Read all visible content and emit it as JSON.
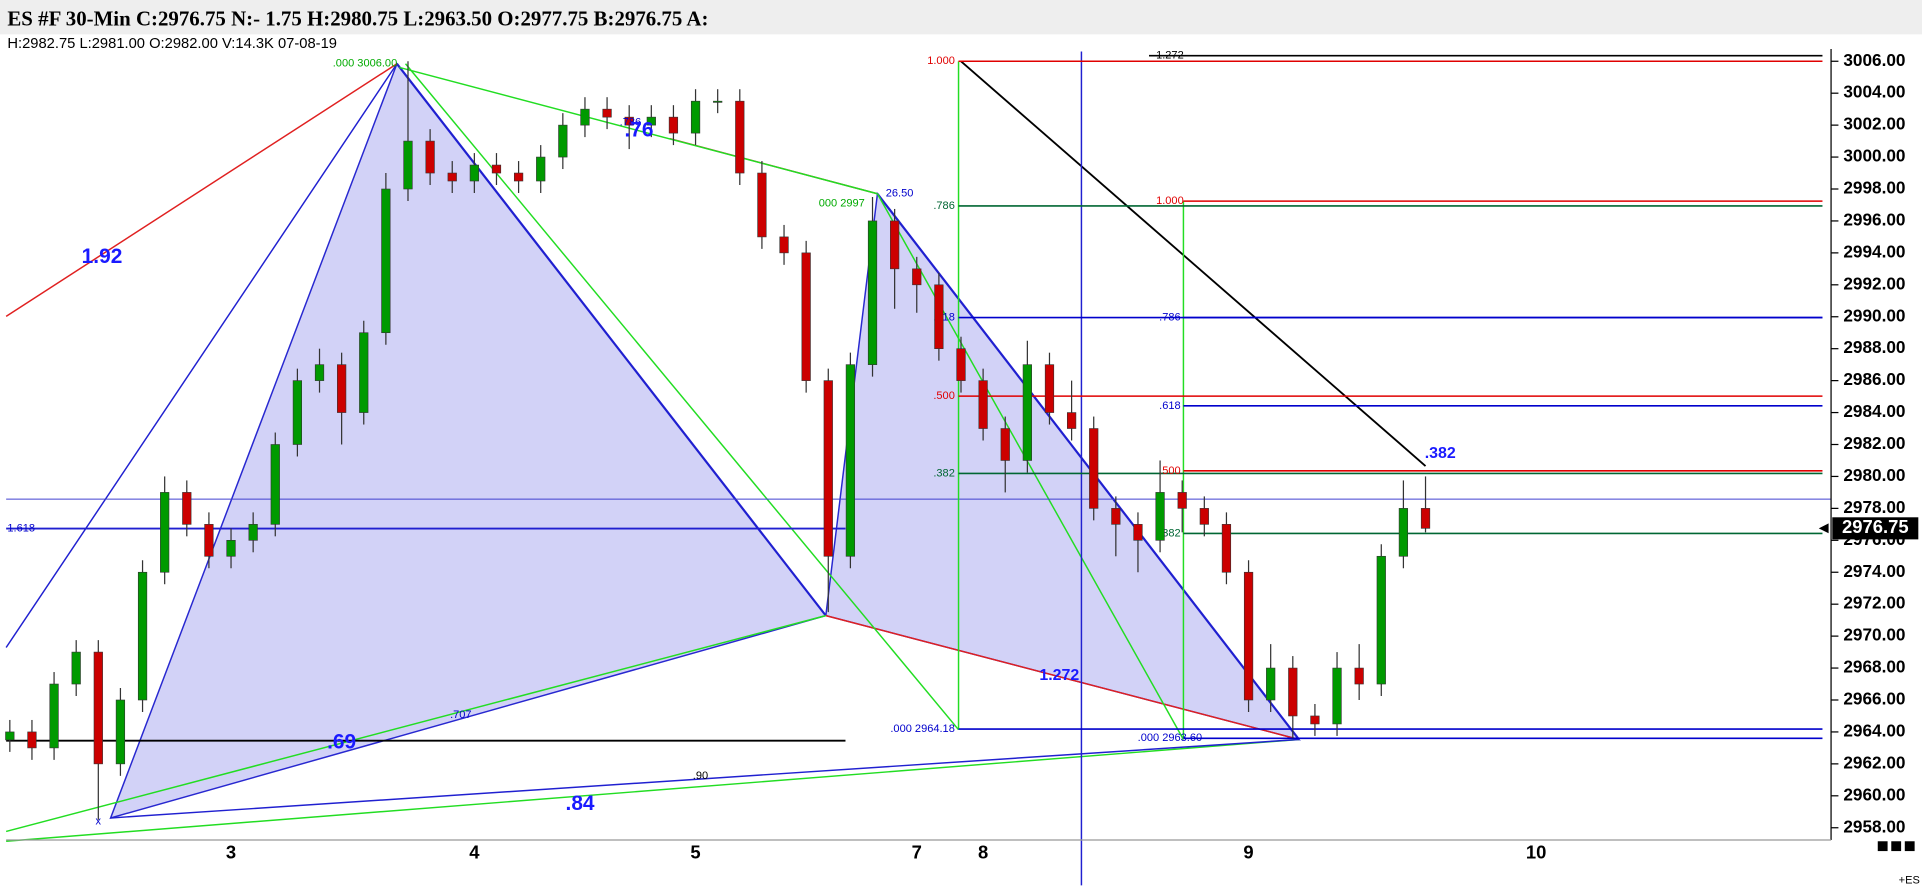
{
  "chart_data": {
    "type": "candlestick",
    "title": "ES #F 30-Min C:2976.75 N:- 1.75 H:2980.75 L:2963.50 O:2977.75 B:2976.75 A:",
    "subtitle": "H:2982.75  L:2981.00  O:2982.00  V:14.3K  07-08-19",
    "categories": [
      null,
      null,
      null,
      null,
      null,
      null,
      null,
      null,
      null,
      null,
      "3",
      null,
      null,
      null,
      null,
      null,
      null,
      null,
      null,
      null,
      null,
      "4",
      null,
      null,
      null,
      null,
      null,
      null,
      null,
      null,
      null,
      "5",
      null,
      null,
      null,
      null,
      null,
      null,
      null,
      null,
      null,
      "7",
      null,
      null,
      "8",
      null,
      null,
      null,
      null,
      null,
      null,
      null,
      null,
      null,
      null,
      null,
      "9",
      null,
      null,
      null,
      null,
      null,
      null,
      null,
      null,
      null,
      null,
      null,
      null,
      "10",
      null,
      null,
      null,
      null,
      null,
      null,
      null,
      null,
      null,
      null,
      null,
      null,
      null
    ],
    "open": [
      2963.5,
      2964,
      2963,
      2967,
      2969,
      2962,
      2966,
      2974,
      2979,
      2977,
      2975,
      2976,
      2977,
      2982,
      2986,
      2987,
      2984,
      2989,
      2998,
      3001,
      2999,
      2998.5,
      2999.5,
      2999,
      2998.5,
      3000,
      3002,
      3003,
      3002.5,
      3002,
      3002.5,
      3001.5,
      3003.5,
      3003.5,
      2999,
      2995,
      2994,
      2986,
      2975,
      2987,
      2996,
      2993,
      2992,
      2988,
      2986,
      2983,
      2981,
      2987,
      2984,
      2983,
      2978,
      2977,
      2976,
      2979,
      2978,
      2977,
      2974,
      2966,
      2968,
      2965,
      2964.5,
      2968,
      2967,
      2975,
      2978,
      null,
      null,
      null,
      null,
      null,
      null,
      null,
      null,
      null,
      null,
      null,
      null,
      null,
      null,
      null,
      null,
      null,
      null
    ],
    "high": [
      2964.75,
      2964.75,
      2967.75,
      2969.75,
      2969.75,
      2966.75,
      2974.75,
      2980,
      2979.75,
      2977.75,
      2976.75,
      2977.75,
      2982.75,
      2986.75,
      2988,
      2987.75,
      2989.75,
      2999,
      3006,
      3001.75,
      2999.75,
      3000.25,
      3000.25,
      2999.75,
      3000.75,
      3002.75,
      3003.75,
      3003.75,
      3003.25,
      3003.25,
      3003.25,
      3004.25,
      3004.25,
      3004.25,
      2999.75,
      2995.75,
      2994.75,
      2986.75,
      2987.75,
      2997.5,
      2996.75,
      2993.75,
      2992.75,
      2988.75,
      2986.75,
      2983.75,
      2988.5,
      2987.75,
      2986,
      2983.75,
      2978.75,
      2977.75,
      2981,
      2979.75,
      2978.75,
      2977.75,
      2974.75,
      2969.5,
      2968.75,
      2965.75,
      2969,
      2969.5,
      2975.75,
      2979.75,
      2980,
      null,
      null,
      null,
      null,
      null,
      null,
      null,
      null,
      null,
      null,
      null,
      null,
      null,
      null,
      null,
      null,
      null,
      null
    ],
    "low": [
      2962.75,
      2962.25,
      2962.25,
      2966.25,
      2958.5,
      2961.25,
      2965.25,
      2973.25,
      2976.25,
      2974.25,
      2974.25,
      2975.25,
      2976.25,
      2981.25,
      2985.25,
      2982,
      2983.25,
      2988.25,
      2997.25,
      2998.25,
      2997.75,
      2997.75,
      2998.25,
      2997.75,
      2997.75,
      2999.25,
      3001.25,
      3001.75,
      3000.5,
      3001.25,
      3000.75,
      3000.75,
      3002.75,
      2998.25,
      2994.25,
      2993.25,
      2985.25,
      2971.5,
      2974.25,
      2986.25,
      2990.5,
      2990.25,
      2987.25,
      2985.25,
      2982.25,
      2979,
      2980.25,
      2983.25,
      2982.25,
      2977.25,
      2975,
      2974,
      2975.25,
      2976.5,
      2976.25,
      2973.25,
      2965.25,
      2965.25,
      2963.6,
      2963.75,
      2963.75,
      2966,
      2966.25,
      2974.25,
      2976.5,
      null,
      null,
      null,
      null,
      null,
      null,
      null,
      null,
      null,
      null,
      null,
      null,
      null,
      null,
      null,
      null,
      null,
      null
    ],
    "close": [
      2964,
      2963,
      2967,
      2969,
      2962,
      2966,
      2974,
      2979,
      2977,
      2975,
      2976,
      2977,
      2982,
      2986,
      2987,
      2984,
      2989,
      2998,
      3001,
      2999,
      2998.5,
      2999.5,
      2999,
      2998.5,
      3000,
      3002,
      3003,
      3002.5,
      3002,
      3002.5,
      3001.5,
      3003.5,
      3003.5,
      2999,
      2995,
      2994,
      2986,
      2975,
      2987,
      2996,
      2993,
      2992,
      2988,
      2986,
      2983,
      2981,
      2987,
      2984,
      2983,
      2978,
      2977,
      2976,
      2979,
      2978,
      2977,
      2974,
      2966,
      2968,
      2965,
      2964.5,
      2968,
      2967,
      2975,
      2978,
      2976.75,
      null,
      null,
      null,
      null,
      null,
      null,
      null,
      null,
      null,
      null,
      null,
      null,
      null,
      null,
      null,
      null,
      null,
      null
    ],
    "up_color": "#009a00",
    "down_color": "#cc0000",
    "ylim": [
      2957.23,
      3006.38
    ],
    "yticks": [
      {
        "value": 2958,
        "label": "2958.00"
      },
      {
        "value": 2960,
        "label": "2960.00"
      },
      {
        "value": 2962,
        "label": "2962.00"
      },
      {
        "value": 2964,
        "label": "2964.00"
      },
      {
        "value": 2966,
        "label": "2966.00"
      },
      {
        "value": 2968,
        "label": "2968.00"
      },
      {
        "value": 2970,
        "label": "2970.00"
      },
      {
        "value": 2972,
        "label": "2972.00"
      },
      {
        "value": 2974,
        "label": "2974.00"
      },
      {
        "value": 2976,
        "label": "2976.00"
      },
      {
        "value": 2978,
        "label": "2978.00"
      },
      {
        "value": 2980,
        "label": "2980.00"
      },
      {
        "value": 2982,
        "label": "2982.00"
      },
      {
        "value": 2984,
        "label": "2984.00"
      },
      {
        "value": 2986,
        "label": "2986.00"
      },
      {
        "value": 2988,
        "label": "2988.00"
      },
      {
        "value": 2990,
        "label": "2990.00"
      },
      {
        "value": 2992,
        "label": "2992.00"
      },
      {
        "value": 2994,
        "label": "2994.00"
      },
      {
        "value": 2996,
        "label": "2996.00"
      },
      {
        "value": 2998,
        "label": "2998.00"
      },
      {
        "value": 3000,
        "label": "3000.00"
      },
      {
        "value": 3002,
        "label": "3002.00"
      },
      {
        "value": 3004,
        "label": "3004.00"
      },
      {
        "value": 3006,
        "label": "3006.00"
      }
    ],
    "last_price": {
      "value": 2976.75,
      "label": "2976.75"
    },
    "fib_sets": [
      [
        {
          "label": "1.000",
          "value": 3006,
          "color": "#e00000"
        },
        {
          "label": ".786",
          "value": 2996.94,
          "color": "#006633"
        },
        {
          "label": ".618",
          "value": 2989.95,
          "color": "#0000cc"
        },
        {
          "label": ".500",
          "value": 2985.03,
          "color": "#e00000"
        },
        {
          "label": ".382",
          "value": 2980.19,
          "color": "#006633"
        },
        {
          "label": ".000 2964.18",
          "value": 2964.18,
          "color": "#0000cc"
        }
      ],
      [
        {
          "label": "1.272",
          "value": 3006.35,
          "color": "#000000"
        },
        {
          "label": "1.000",
          "value": 2997.24,
          "color": "#e00000"
        },
        {
          "label": ".786",
          "value": 2989.95,
          "color": "#0000cc"
        },
        {
          "label": ".618",
          "value": 2984.42,
          "color": "#0000cc"
        },
        {
          "label": ".500",
          "value": 2980.35,
          "color": "#e00000"
        },
        {
          "label": ".382",
          "value": 2976.43,
          "color": "#006633"
        },
        {
          "label": ".000 2963.60",
          "value": 2963.6,
          "color": "#0000cc"
        }
      ]
    ],
    "annotations": [
      {
        "text": "1.92",
        "color": "#1a1aff"
      },
      {
        "text": ".786",
        "color": "#0000cc"
      },
      {
        "text": ".76",
        "color": "#1a1aff"
      },
      {
        "text": "1.618",
        "color": "#0000cc"
      },
      {
        "text": ".69",
        "color": "#1a1aff"
      },
      {
        "text": ".707",
        "color": "#0000cc"
      },
      {
        "text": ".90",
        "color": "#000000"
      },
      {
        "text": ".84",
        "color": "#1a1aff"
      },
      {
        "text": "1.272",
        "color": "#1a1aff"
      },
      {
        "text": ".382",
        "color": "#1a1aff"
      },
      {
        "text": ".000 3006.00",
        "color": "#00aa00"
      },
      {
        "text": "000 2997",
        "color": "#00aa00"
      },
      {
        "text": "26.50",
        "color": "#0000cc"
      },
      {
        "text": "x",
        "color": "#0000cc"
      }
    ],
    "symbol_tag": "+ES"
  }
}
